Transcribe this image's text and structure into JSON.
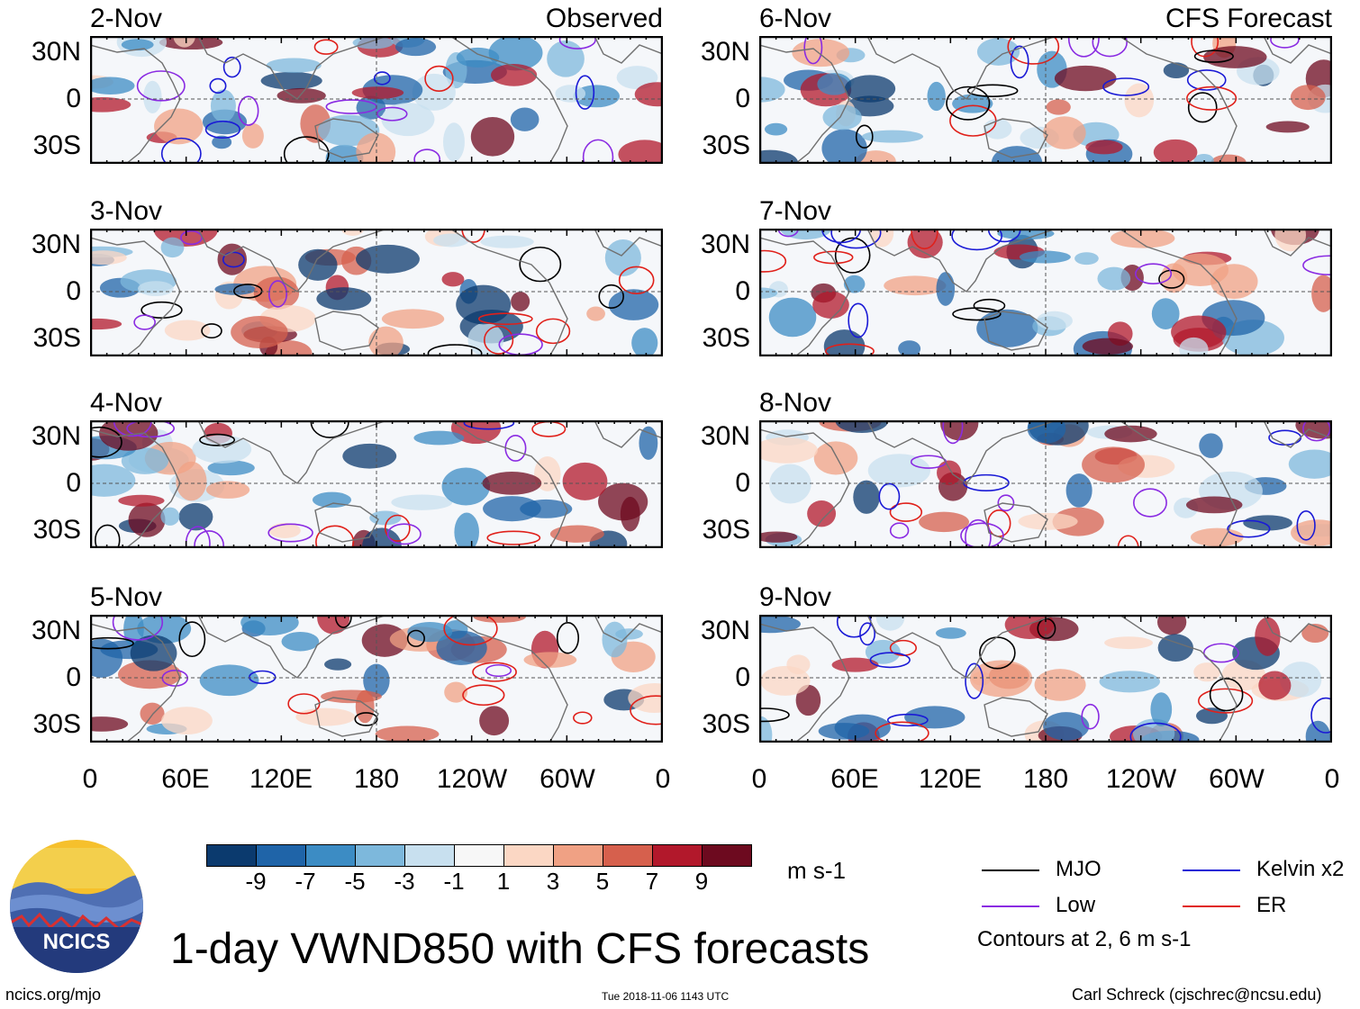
{
  "chart_data": {
    "type": "heatmap",
    "title": "1-day VWND850 with CFS forecasts",
    "variable": "VWND850",
    "units": "m s-1",
    "columns": [
      {
        "label": "Observed",
        "dates": [
          "2-Nov",
          "3-Nov",
          "4-Nov",
          "5-Nov"
        ]
      },
      {
        "label": "CFS Forecast",
        "dates": [
          "6-Nov",
          "7-Nov",
          "8-Nov",
          "9-Nov"
        ]
      }
    ],
    "lat_ticks": [
      "30N",
      "0",
      "30S"
    ],
    "lon_ticks": [
      "0",
      "60E",
      "120E",
      "180",
      "120W",
      "60W",
      "0"
    ],
    "colorbar": {
      "tick_labels": [
        "-9",
        "-7",
        "-5",
        "-3",
        "-1",
        "1",
        "3",
        "5",
        "7",
        "9"
      ],
      "colors": [
        "#0b3a6e",
        "#1f64a8",
        "#3c8cc4",
        "#7db8dc",
        "#c8e0ef",
        "#f7f7f7",
        "#fbd7c4",
        "#f0a184",
        "#d6604d",
        "#b2182b",
        "#6d0a1f"
      ]
    },
    "contours": {
      "label": "Contours at 2, 6 m s-1",
      "filters": [
        {
          "name": "MJO",
          "color": "#000000"
        },
        {
          "name": "Kelvin x2",
          "color": "#1a1ad6"
        },
        {
          "name": "Low",
          "color": "#8a2be2"
        },
        {
          "name": "ER",
          "color": "#e0201a"
        }
      ]
    }
  },
  "footer": {
    "logo_text": "NCICS",
    "url": "ncics.org/mjo",
    "timestamp": "Tue 2018-11-06 1143 UTC",
    "author": "Carl Schreck (cjschrec@ncsu.edu)"
  }
}
